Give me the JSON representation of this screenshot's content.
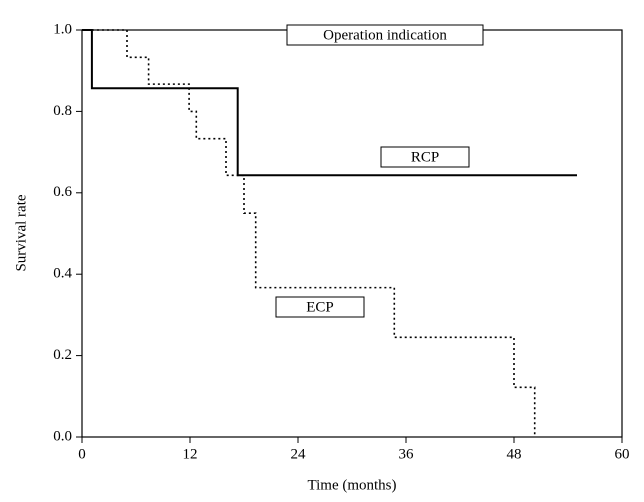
{
  "chart_data": {
    "type": "step",
    "x_label": "Time (months)",
    "y_label": "Survival rate",
    "xlim": [
      0,
      60
    ],
    "xticks": [
      0,
      12,
      24,
      36,
      48,
      60
    ],
    "ylim": [
      0,
      1
    ],
    "yticks": [
      {
        "value": 0,
        "label": "0.0"
      },
      0.2,
      0.4,
      0.6,
      0.8,
      {
        "value": 1,
        "label": "1.0"
      }
    ],
    "annotations": [
      "Operation indication",
      "RCP",
      "ECP"
    ],
    "series": [
      {
        "name": "RCP",
        "color": "#000000",
        "dash": "solid",
        "x": [
          0,
          1.1,
          17.3,
          55
        ],
        "values": [
          1,
          0.857,
          0.643,
          0.643
        ]
      },
      {
        "name": "ECP",
        "color": "#000000",
        "dash": "dotted",
        "x": [
          0,
          5,
          7.4,
          11.9,
          12.7,
          16,
          18,
          19.3,
          34.7,
          48,
          50.3
        ],
        "values": [
          1,
          0.933,
          0.867,
          0.8,
          0.733,
          0.643,
          0.55,
          0.367,
          0.245,
          0.122,
          0
        ]
      }
    ]
  }
}
